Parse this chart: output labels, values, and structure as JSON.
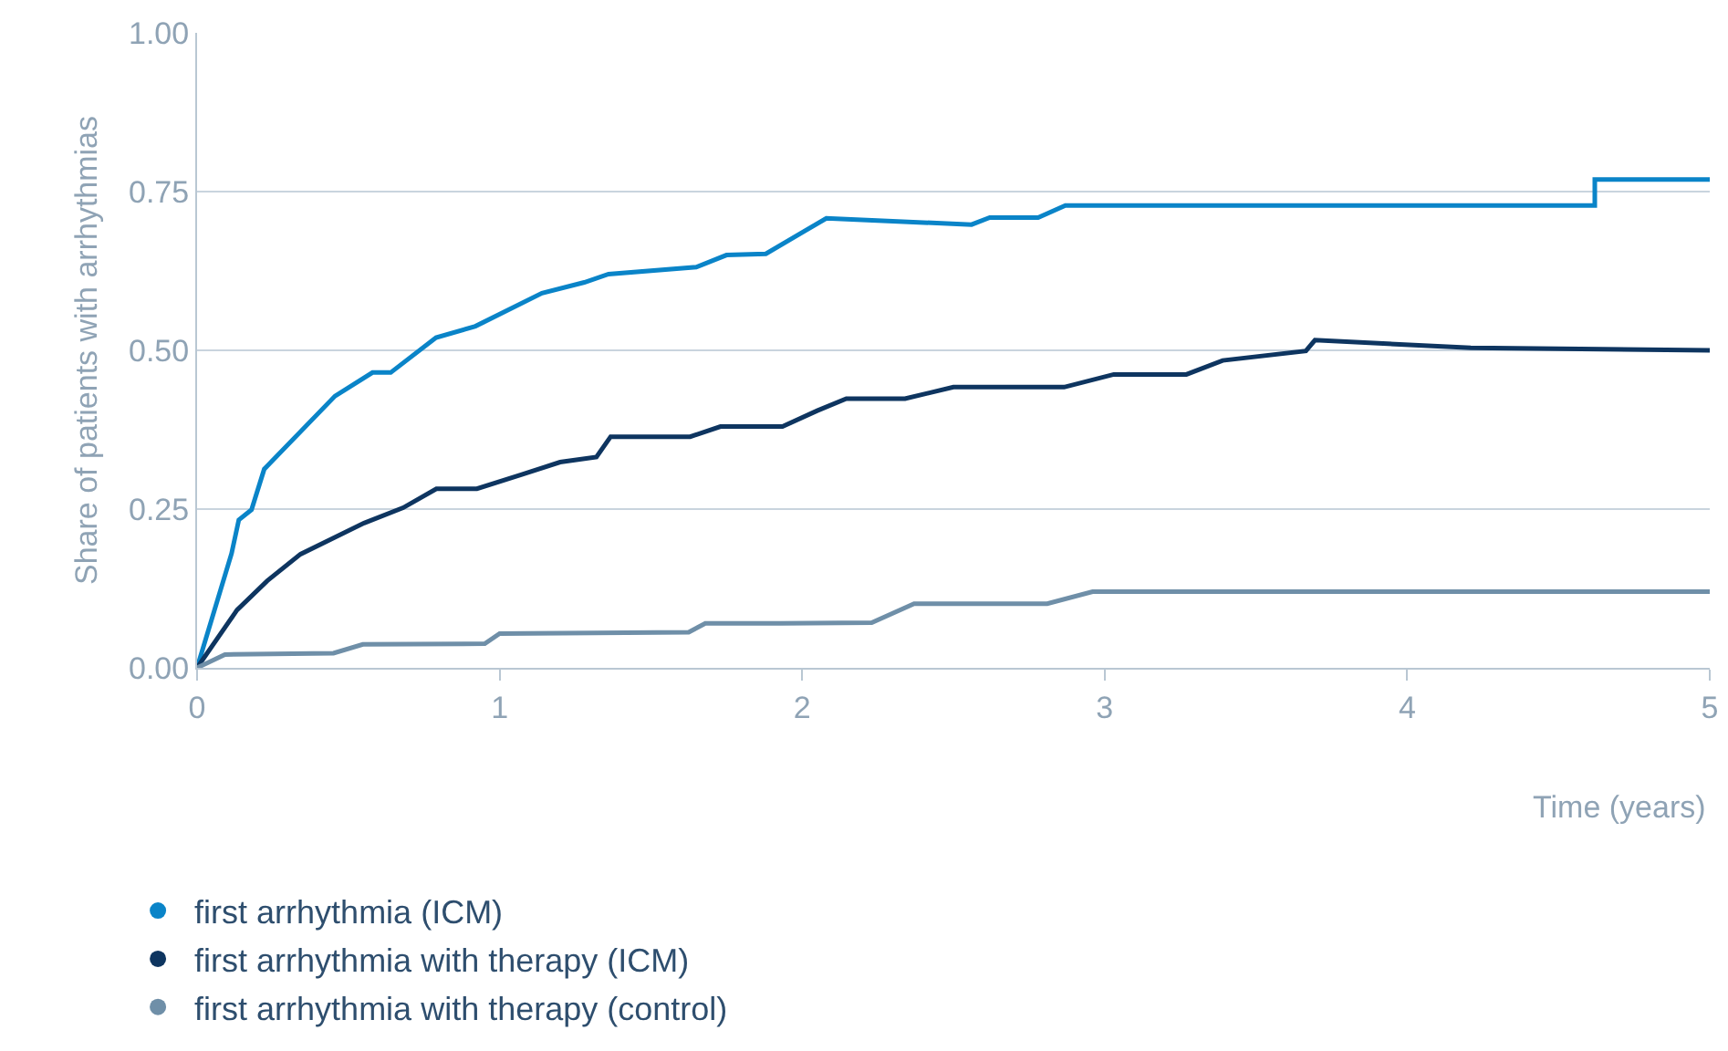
{
  "chart_data": {
    "type": "line",
    "xlabel": "Time (years)",
    "ylabel": "Share of patients with arrhythmias",
    "xlim": [
      0,
      5
    ],
    "xticks": [
      0,
      1,
      2,
      3,
      4,
      5
    ],
    "ylim": [
      0,
      1
    ],
    "yticks": [
      {
        "value": 0,
        "label": "0.00"
      },
      {
        "value": 0.25,
        "label": "0.25"
      },
      {
        "value": 0.5,
        "label": "0.50"
      },
      {
        "value": 0.75,
        "label": "0.75"
      },
      {
        "value": 1,
        "label": "1.00"
      }
    ],
    "grid": "y",
    "legend": "bottom left",
    "line_style": "solid",
    "series": [
      {
        "name": "first arrhythmia (ICM)",
        "color": "#0a84c8",
        "x": [
          0,
          0.114,
          0.138,
          0.18,
          0.222,
          0.456,
          0.58,
          0.64,
          0.79,
          0.92,
          1.14,
          1.28,
          1.36,
          1.65,
          1.75,
          1.88,
          2.08,
          2.56,
          2.62,
          2.78,
          2.87,
          4.62,
          4.62,
          5
        ],
        "values": [
          0,
          0.18,
          0.233,
          0.249,
          0.313,
          0.428,
          0.465,
          0.465,
          0.52,
          0.538,
          0.59,
          0.607,
          0.62,
          0.631,
          0.65,
          0.652,
          0.708,
          0.698,
          0.709,
          0.709,
          0.728,
          0.728,
          0.769,
          0.769
        ]
      },
      {
        "name": "first arrhythmia with therapy (ICM)",
        "color": "#0e3560",
        "x": [
          0,
          0.132,
          0.232,
          0.342,
          0.552,
          0.681,
          0.791,
          0.925,
          1.071,
          1.2,
          1.32,
          1.367,
          1.63,
          1.73,
          1.935,
          2.05,
          2.146,
          2.34,
          2.5,
          2.866,
          3.03,
          3.27,
          3.39,
          3.665,
          3.695,
          4.21,
          5
        ],
        "values": [
          0,
          0.091,
          0.137,
          0.179,
          0.228,
          0.252,
          0.282,
          0.282,
          0.304,
          0.324,
          0.332,
          0.364,
          0.364,
          0.38,
          0.38,
          0.405,
          0.424,
          0.424,
          0.442,
          0.442,
          0.462,
          0.462,
          0.484,
          0.499,
          0.516,
          0.504,
          0.5
        ]
      },
      {
        "name": "first arrhythmia with therapy (control)",
        "color": "#6f8fa8",
        "x": [
          0,
          0.092,
          0.451,
          0.548,
          0.951,
          1.0,
          1.625,
          1.68,
          1.93,
          2.23,
          2.37,
          2.81,
          2.96,
          5
        ],
        "values": [
          0,
          0.021,
          0.023,
          0.037,
          0.038,
          0.054,
          0.056,
          0.07,
          0.07,
          0.071,
          0.101,
          0.101,
          0.12,
          0.12
        ]
      }
    ]
  }
}
